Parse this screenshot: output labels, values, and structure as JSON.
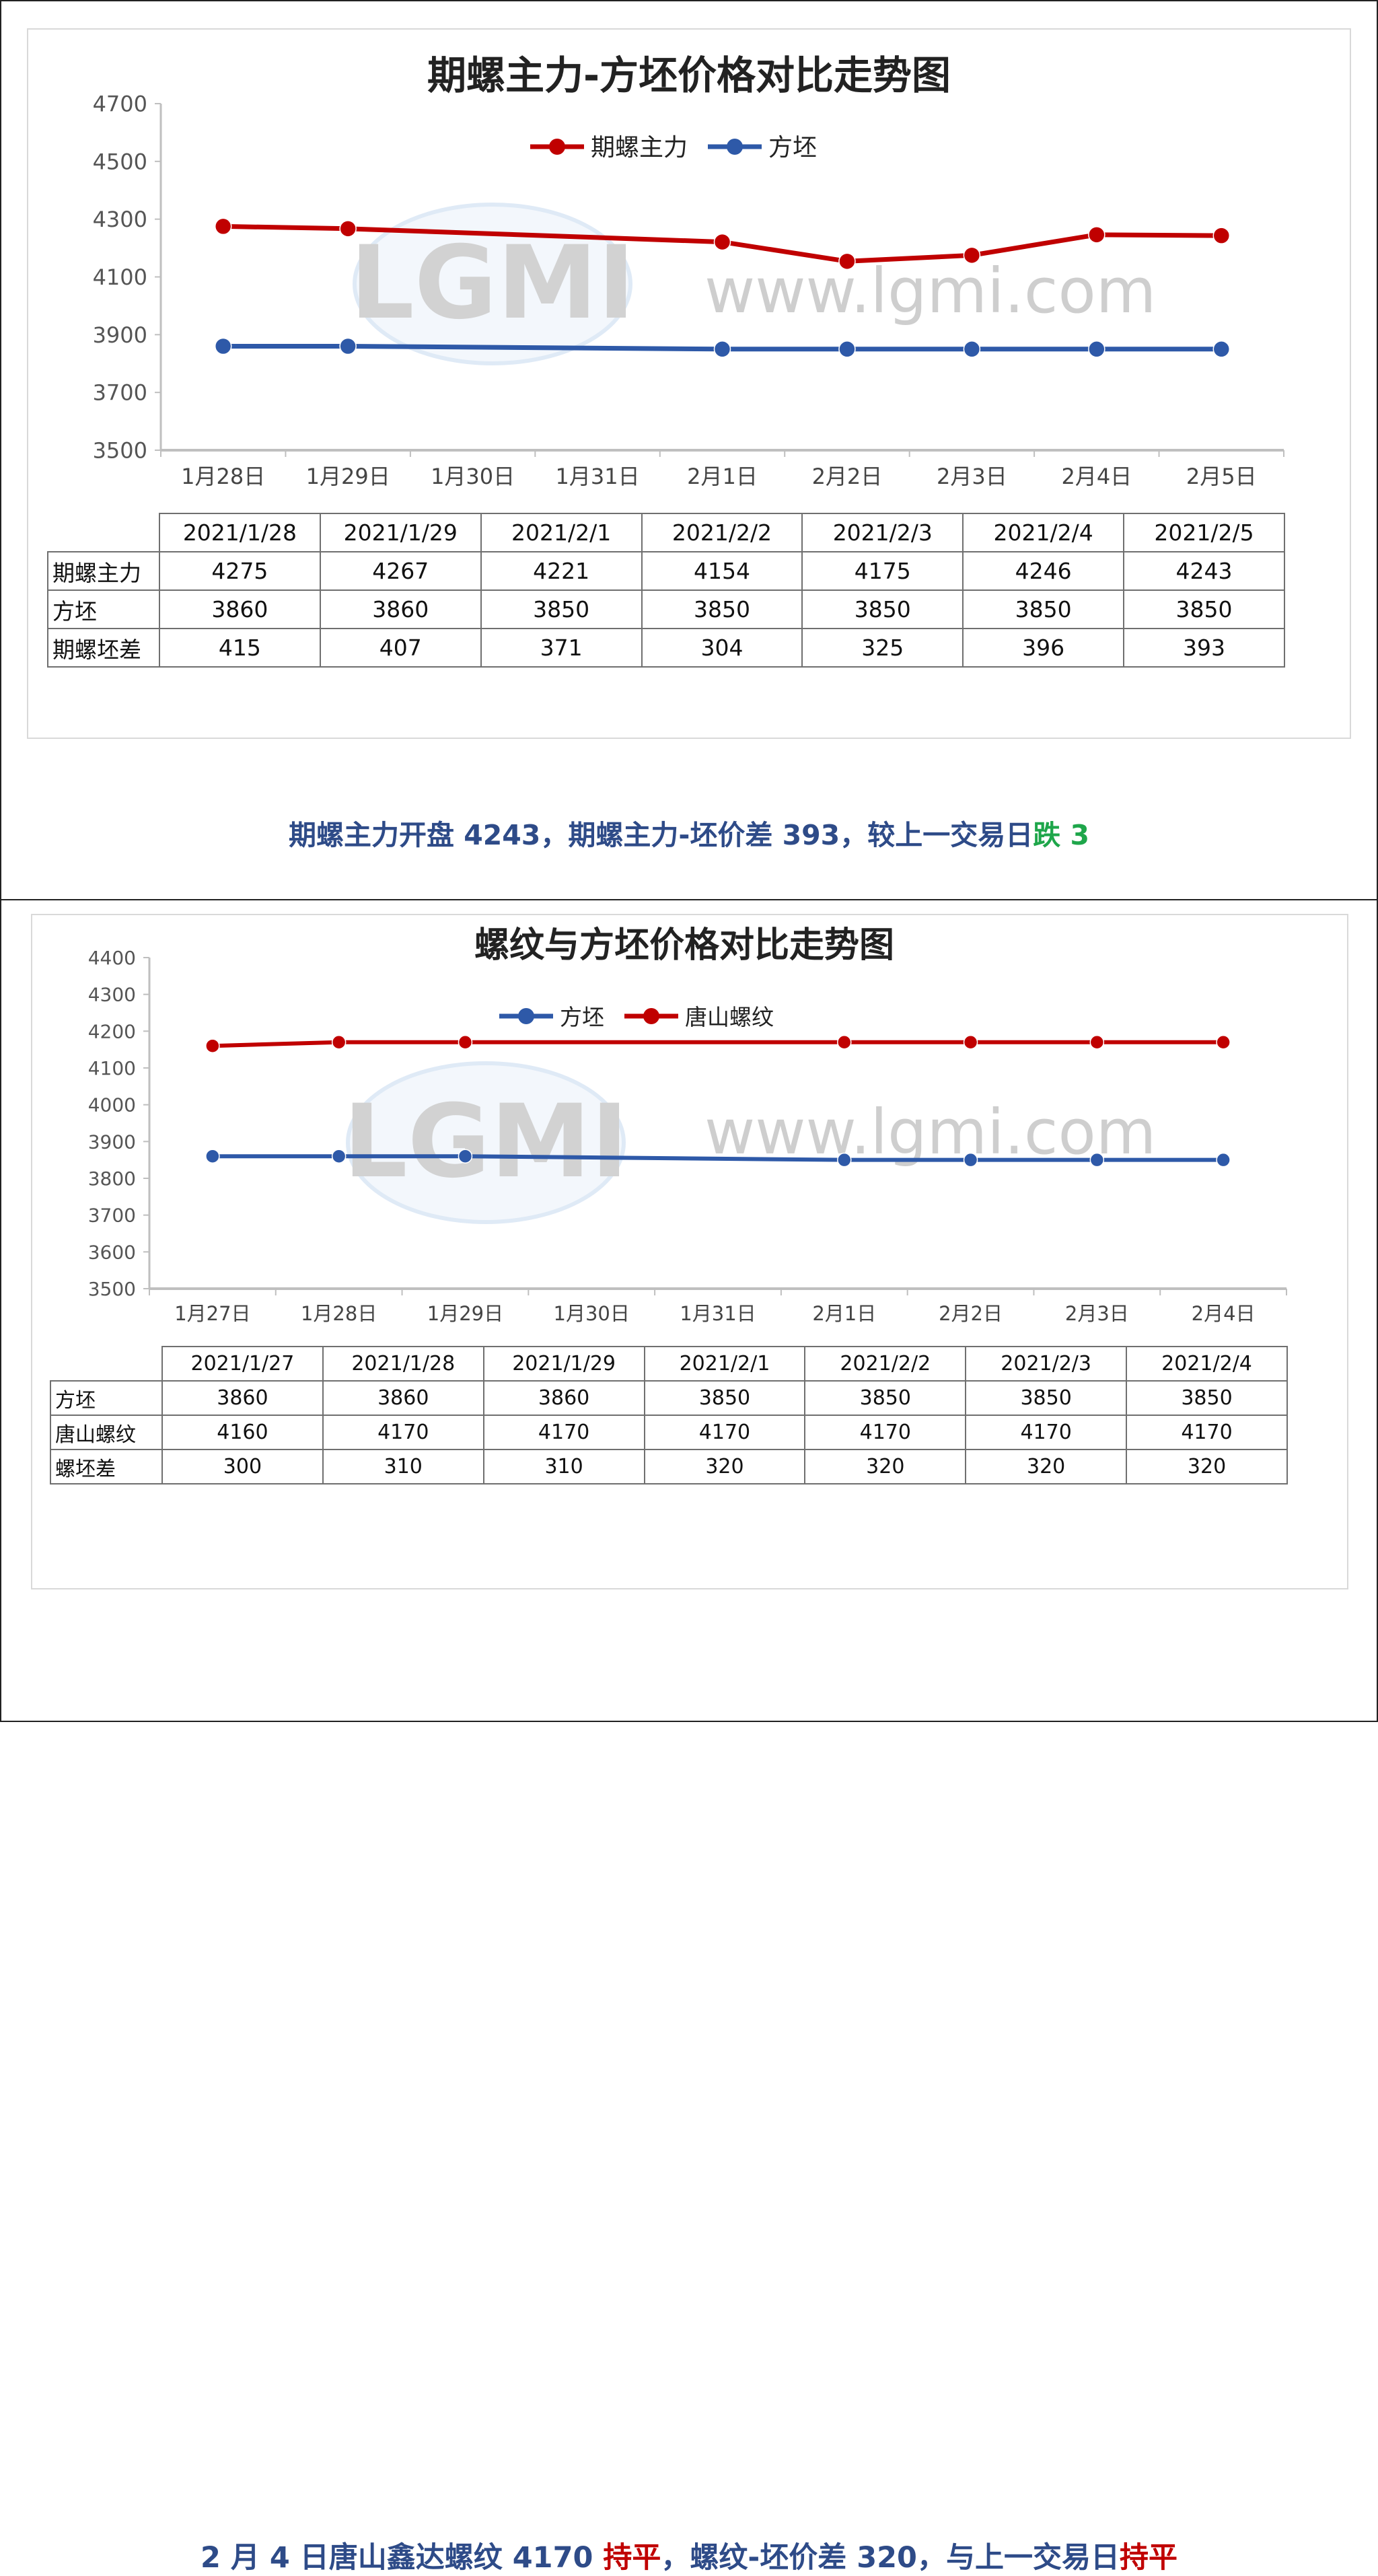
{
  "chart_data": [
    {
      "type": "line",
      "title": "期螺主力-方坯价格对比走势图",
      "categories": [
        "1月28日",
        "1月29日",
        "1月30日",
        "1月31日",
        "2月1日",
        "2月2日",
        "2月3日",
        "2月4日",
        "2月5日"
      ],
      "y_ticks": [
        "3500",
        "3700",
        "3900",
        "4100",
        "4300",
        "4500",
        "4700"
      ],
      "ylim": [
        3500,
        4700
      ],
      "legend_position": "top",
      "series": [
        {
          "name": "期螺主力",
          "color": "#c00000",
          "x": [
            "1月28日",
            "1月29日",
            "2月1日",
            "2月2日",
            "2月3日",
            "2月4日",
            "2月5日"
          ],
          "values": [
            4275,
            4267,
            4221,
            4154,
            4175,
            4246,
            4243
          ]
        },
        {
          "name": "方坯",
          "color": "#2e59a8",
          "x": [
            "1月28日",
            "1月29日",
            "2月1日",
            "2月2日",
            "2月3日",
            "2月4日",
            "2月5日"
          ],
          "values": [
            3860,
            3860,
            3850,
            3850,
            3850,
            3850,
            3850
          ]
        }
      ],
      "table": {
        "headers": [
          "2021/1/28",
          "2021/1/29",
          "2021/2/1",
          "2021/2/2",
          "2021/2/3",
          "2021/2/4",
          "2021/2/5"
        ],
        "rows": [
          {
            "label": "期螺主力",
            "values": [
              "4275",
              "4267",
              "4221",
              "4154",
              "4175",
              "4246",
              "4243"
            ]
          },
          {
            "label": "方坯",
            "values": [
              "3860",
              "3860",
              "3850",
              "3850",
              "3850",
              "3850",
              "3850"
            ]
          },
          {
            "label": "期螺坯差",
            "values": [
              "415",
              "407",
              "371",
              "304",
              "325",
              "396",
              "393"
            ]
          }
        ]
      }
    },
    {
      "type": "line",
      "title": "螺纹与方坯价格对比走势图",
      "categories": [
        "1月27日",
        "1月28日",
        "1月29日",
        "1月30日",
        "1月31日",
        "2月1日",
        "2月2日",
        "2月3日",
        "2月4日"
      ],
      "y_ticks": [
        "3500",
        "3600",
        "3700",
        "3800",
        "3900",
        "4000",
        "4100",
        "4200",
        "4300",
        "4400"
      ],
      "ylim": [
        3500,
        4400
      ],
      "legend_position": "top",
      "series": [
        {
          "name": "方坯",
          "color": "#2e59a8",
          "x": [
            "1月27日",
            "1月28日",
            "1月29日",
            "2月1日",
            "2月2日",
            "2月3日",
            "2月4日"
          ],
          "values": [
            3860,
            3860,
            3860,
            3850,
            3850,
            3850,
            3850
          ]
        },
        {
          "name": "唐山螺纹",
          "color": "#c00000",
          "x": [
            "1月27日",
            "1月28日",
            "1月29日",
            "2月1日",
            "2月2日",
            "2月3日",
            "2月4日"
          ],
          "values": [
            4160,
            4170,
            4170,
            4170,
            4170,
            4170,
            4170
          ]
        }
      ],
      "table": {
        "headers": [
          "2021/1/27",
          "2021/1/28",
          "2021/1/29",
          "2021/2/1",
          "2021/2/2",
          "2021/2/3",
          "2021/2/4"
        ],
        "rows": [
          {
            "label": "方坯",
            "values": [
              "3860",
              "3860",
              "3860",
              "3850",
              "3850",
              "3850",
              "3850"
            ]
          },
          {
            "label": "唐山螺纹",
            "values": [
              "4160",
              "4170",
              "4170",
              "4170",
              "4170",
              "4170",
              "4170"
            ]
          },
          {
            "label": "螺坯差",
            "values": [
              "300",
              "310",
              "310",
              "320",
              "320",
              "320",
              "320"
            ]
          }
        ]
      }
    }
  ],
  "watermark": {
    "logo_text": "LGMI",
    "url_text": "www.lgmi.com"
  },
  "captions": {
    "panel1": {
      "main": "期螺主力开盘 4243，期螺主力-坯价差 393，较上一交易日",
      "change": "跌 3"
    },
    "panel2": {
      "part1": "2 月 4 日唐山鑫达螺纹 4170 ",
      "status1": "持平",
      "part2": "，螺纹-坯价差 320，与上一交易日",
      "status2": "持平"
    }
  }
}
